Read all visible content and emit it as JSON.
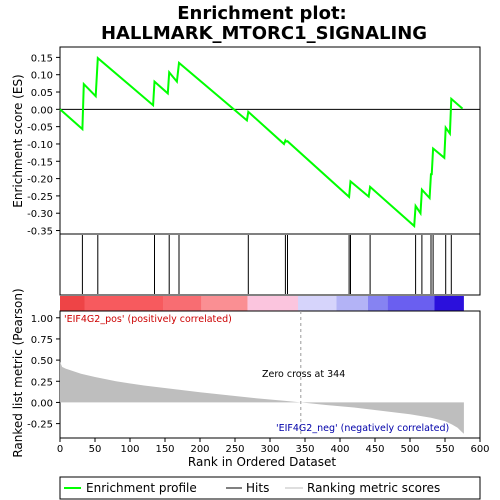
{
  "chart_data": {
    "type": "line",
    "title_line1": "Enrichment plot:",
    "title_line2": "HALLMARK_MTORC1_SIGNALING",
    "top_panel": {
      "ylabel": "Enrichment score (ES)",
      "ylim": [
        -0.36,
        0.18
      ],
      "yticks": [
        0.15,
        0.1,
        0.05,
        0.0,
        -0.05,
        -0.1,
        -0.15,
        -0.2,
        -0.25,
        -0.3,
        -0.35
      ],
      "ytick_labels": [
        "0.15",
        "0.10",
        "0.05",
        "0.00",
        "-0.05",
        "-0.10",
        "-0.15",
        "-0.20",
        "-0.25",
        "-0.30",
        "-0.35"
      ],
      "series": [
        {
          "color": "#00ff00",
          "x": [
            0,
            32,
            34,
            51,
            54,
            133,
            135,
            154,
            156,
            167,
            170,
            267,
            269,
            320,
            322,
            323,
            325,
            413,
            415,
            441,
            443,
            506,
            508,
            515,
            517,
            528,
            530,
            531,
            533,
            549,
            551,
            557,
            559,
            575
          ],
          "y": [
            0.0,
            -0.057,
            0.073,
            0.038,
            0.148,
            0.012,
            0.08,
            0.046,
            0.107,
            0.08,
            0.134,
            -0.032,
            -0.007,
            -0.1,
            -0.09,
            -0.093,
            -0.092,
            -0.253,
            -0.208,
            -0.252,
            -0.224,
            -0.337,
            -0.279,
            -0.3,
            -0.232,
            -0.256,
            -0.185,
            -0.19,
            -0.113,
            -0.14,
            -0.053,
            -0.07,
            0.03,
            0.002
          ]
        }
      ]
    },
    "hits": [
      32,
      54,
      135,
      156,
      170,
      269,
      322,
      325,
      413,
      415,
      443,
      508,
      517,
      530,
      533,
      551,
      559
    ],
    "color_bar": [
      {
        "from": 0,
        "to": 35,
        "color": "#ee4446"
      },
      {
        "from": 35,
        "to": 148,
        "color": "#f75a5e"
      },
      {
        "from": 148,
        "to": 202,
        "color": "#f86d72"
      },
      {
        "from": 202,
        "to": 268,
        "color": "#fa8f93"
      },
      {
        "from": 268,
        "to": 340,
        "color": "#fbc5de"
      },
      {
        "from": 340,
        "to": 395,
        "color": "#d6d4fb"
      },
      {
        "from": 395,
        "to": 440,
        "color": "#b3b3f6"
      },
      {
        "from": 440,
        "to": 468,
        "color": "#8683f2"
      },
      {
        "from": 468,
        "to": 535,
        "color": "#6a5ff0"
      },
      {
        "from": 535,
        "to": 577,
        "color": "#2b10dc"
      }
    ],
    "bottom_panel": {
      "ylabel": "Ranked list metric (Pearson)",
      "xlabel": "Rank in Ordered Dataset",
      "ylim": [
        -0.42,
        1.08
      ],
      "yticks": [
        1.0,
        0.75,
        0.5,
        0.25,
        0.0,
        -0.25
      ],
      "ytick_labels": [
        "1.00",
        "0.75",
        "0.50",
        "0.25",
        "0.00",
        "-0.25"
      ],
      "xlim": [
        0,
        600
      ],
      "xticks": [
        0,
        50,
        100,
        150,
        200,
        250,
        300,
        350,
        400,
        450,
        500,
        550,
        600
      ],
      "xtick_labels": [
        "0",
        "50",
        "100",
        "150",
        "200",
        "250",
        "300",
        "350",
        "400",
        "450",
        "500",
        "550",
        "600"
      ],
      "metric_curve": {
        "x": [
          0,
          3,
          8,
          15,
          30,
          50,
          80,
          120,
          160,
          200,
          240,
          280,
          320,
          344,
          380,
          420,
          460,
          500,
          530,
          550,
          560,
          568,
          573,
          577
        ],
        "y": [
          0.48,
          0.42,
          0.4,
          0.38,
          0.34,
          0.3,
          0.25,
          0.2,
          0.16,
          0.12,
          0.085,
          0.05,
          0.02,
          0.0,
          -0.03,
          -0.06,
          -0.1,
          -0.14,
          -0.18,
          -0.22,
          -0.26,
          -0.3,
          -0.34,
          -0.37
        ]
      },
      "zero_cross_x": 344,
      "zero_cross_label": "Zero cross at 344",
      "pos_label": "'EIF4G2_pos' (positively correlated)",
      "neg_label": "'EIF4G2_neg' (negatively correlated)"
    },
    "legend": {
      "placement": "bottom",
      "entries": [
        {
          "label": "Enrichment profile",
          "color": "#00ff00"
        },
        {
          "label": "Hits",
          "color": "#000000"
        },
        {
          "label": "Ranking metric scores",
          "color": "#bebebe"
        }
      ]
    }
  }
}
